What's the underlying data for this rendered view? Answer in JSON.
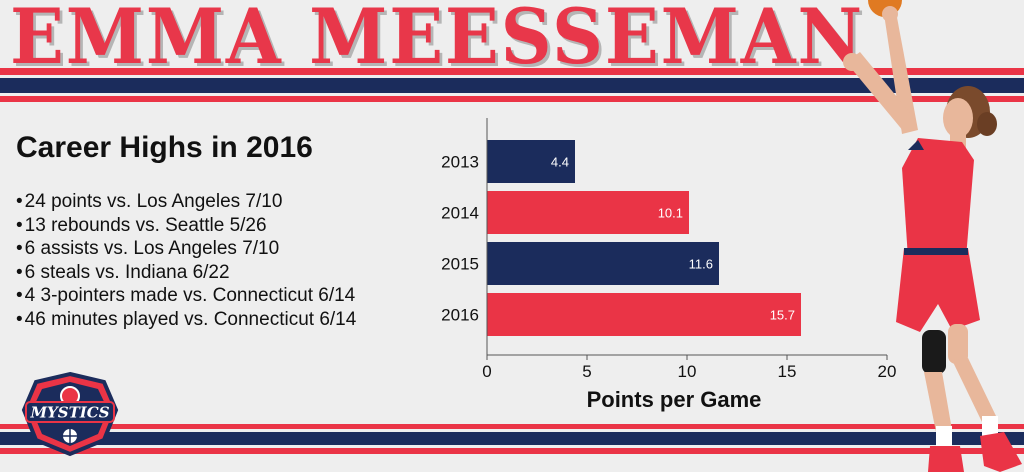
{
  "header": {
    "name": "EMMA MEESSEMAN"
  },
  "highlights": {
    "heading": "Career Highs in 2016",
    "items": [
      "24 points vs. Los Angeles 7/10",
      "13 rebounds vs. Seattle 5/26",
      "6 assists vs. Los Angeles 7/10",
      "6 steals vs. Indiana 6/22",
      "4 3-pointers made vs. Connecticut 6/14",
      "46 minutes played vs. Connecticut 6/14"
    ]
  },
  "logo": {
    "text": "MYSTICS",
    "icon": "mystics-logo"
  },
  "colors": {
    "red": "#ea3446",
    "navy": "#1b2c5c",
    "title": "#e8374a",
    "background": "#eeeeee"
  },
  "chart_data": {
    "type": "bar",
    "orientation": "horizontal",
    "categories": [
      "2013",
      "2014",
      "2015",
      "2016"
    ],
    "values": [
      4.4,
      10.1,
      11.6,
      15.7
    ],
    "data_labels": [
      "4.4",
      "10.1",
      "11.6",
      "15.7"
    ],
    "bar_colors": [
      "#1b2c5c",
      "#ea3446",
      "#1b2c5c",
      "#ea3446"
    ],
    "xlabel": "Points per Game",
    "xlim": [
      0,
      20
    ],
    "xticks": [
      "0",
      "5",
      "10",
      "15",
      "20"
    ],
    "grid": false,
    "legend": "none"
  }
}
